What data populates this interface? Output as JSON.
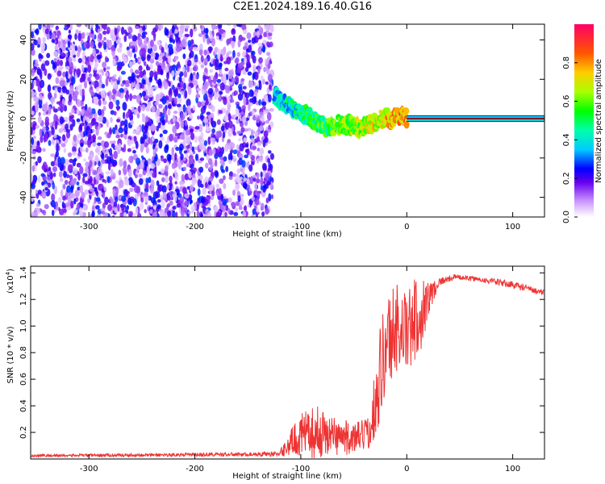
{
  "title": "C2E1.2024.189.16.40.G16",
  "chart_data": [
    {
      "type": "heatmap",
      "xlabel": "Height of straight line (km)",
      "ylabel": "Frequency (Hz)",
      "xlim": [
        -355,
        130
      ],
      "ylim": [
        -50,
        48
      ],
      "xticks": [
        -300,
        -200,
        -100,
        0,
        100
      ],
      "xtick_labels": [
        "-300",
        "-200",
        "-100",
        "0",
        "100"
      ],
      "yticks": [
        -40,
        -20,
        0,
        20,
        40
      ],
      "ytick_labels": [
        "-40",
        "-20",
        "0",
        "20",
        "40"
      ],
      "noise_region_km": [
        -355,
        -127
      ],
      "signal_ridge": [
        {
          "x": -125,
          "f": 12
        },
        {
          "x": -115,
          "f": 8
        },
        {
          "x": -105,
          "f": 4
        },
        {
          "x": -95,
          "f": 2
        },
        {
          "x": -85,
          "f": -2
        },
        {
          "x": -75,
          "f": -5
        },
        {
          "x": -65,
          "f": -3
        },
        {
          "x": -55,
          "f": -3
        },
        {
          "x": -45,
          "f": -5
        },
        {
          "x": -35,
          "f": -3
        },
        {
          "x": -25,
          "f": 0
        },
        {
          "x": -15,
          "f": 0
        },
        {
          "x": -5,
          "f": 2
        },
        {
          "x": 0,
          "f": 0
        }
      ],
      "carrier_line": {
        "from_km": 0,
        "to_km": 130,
        "frequency_hz": 0
      },
      "colorbar": {
        "label": "Normalized spectral amplitude",
        "range": [
          0,
          1
        ],
        "ticks": [
          0,
          0.2,
          0.4,
          0.6,
          0.8
        ],
        "tick_labels": [
          "0.0",
          "0.2",
          "0.4",
          "0.6",
          "0.8"
        ]
      },
      "grid": false
    },
    {
      "type": "line",
      "xlabel": "Height of straight line (km)",
      "ylabel": "SNR (10 * v/v)",
      "yscale_label": "(x10",
      "yscale_exp": "4",
      "yscale_close": ")",
      "xlim": [
        -355,
        130
      ],
      "ylim": [
        0,
        1.45
      ],
      "xticks": [
        -300,
        -200,
        -100,
        0,
        100
      ],
      "xtick_labels": [
        "-300",
        "-200",
        "-100",
        "0",
        "100"
      ],
      "yticks": [
        0.2,
        0.4,
        0.6,
        0.8,
        1.0,
        1.2,
        1.4
      ],
      "ytick_labels": [
        "0.2",
        "0.4",
        "0.6",
        "0.8",
        "1.0",
        "1.2",
        "1.4"
      ],
      "color": "#ee3333",
      "envelope": [
        {
          "x": -355,
          "mean": 0.025,
          "spread": 0.01
        },
        {
          "x": -250,
          "mean": 0.03,
          "spread": 0.012
        },
        {
          "x": -150,
          "mean": 0.035,
          "spread": 0.015
        },
        {
          "x": -120,
          "mean": 0.04,
          "spread": 0.02
        },
        {
          "x": -110,
          "mean": 0.12,
          "spread": 0.1
        },
        {
          "x": -100,
          "mean": 0.18,
          "spread": 0.16
        },
        {
          "x": -85,
          "mean": 0.2,
          "spread": 0.2
        },
        {
          "x": -70,
          "mean": 0.18,
          "spread": 0.15
        },
        {
          "x": -50,
          "mean": 0.15,
          "spread": 0.12
        },
        {
          "x": -35,
          "mean": 0.2,
          "spread": 0.12
        },
        {
          "x": -28,
          "mean": 0.55,
          "spread": 0.35
        },
        {
          "x": -20,
          "mean": 0.85,
          "spread": 0.4
        },
        {
          "x": -10,
          "mean": 1.0,
          "spread": 0.35
        },
        {
          "x": 0,
          "mean": 0.95,
          "spread": 0.3
        },
        {
          "x": 10,
          "mean": 1.05,
          "spread": 0.35
        },
        {
          "x": 20,
          "mean": 1.2,
          "spread": 0.15
        },
        {
          "x": 30,
          "mean": 1.33,
          "spread": 0.03
        },
        {
          "x": 45,
          "mean": 1.37,
          "spread": 0.02
        },
        {
          "x": 70,
          "mean": 1.35,
          "spread": 0.02
        },
        {
          "x": 100,
          "mean": 1.31,
          "spread": 0.03
        },
        {
          "x": 130,
          "mean": 1.25,
          "spread": 0.02
        }
      ],
      "grid": false
    }
  ]
}
